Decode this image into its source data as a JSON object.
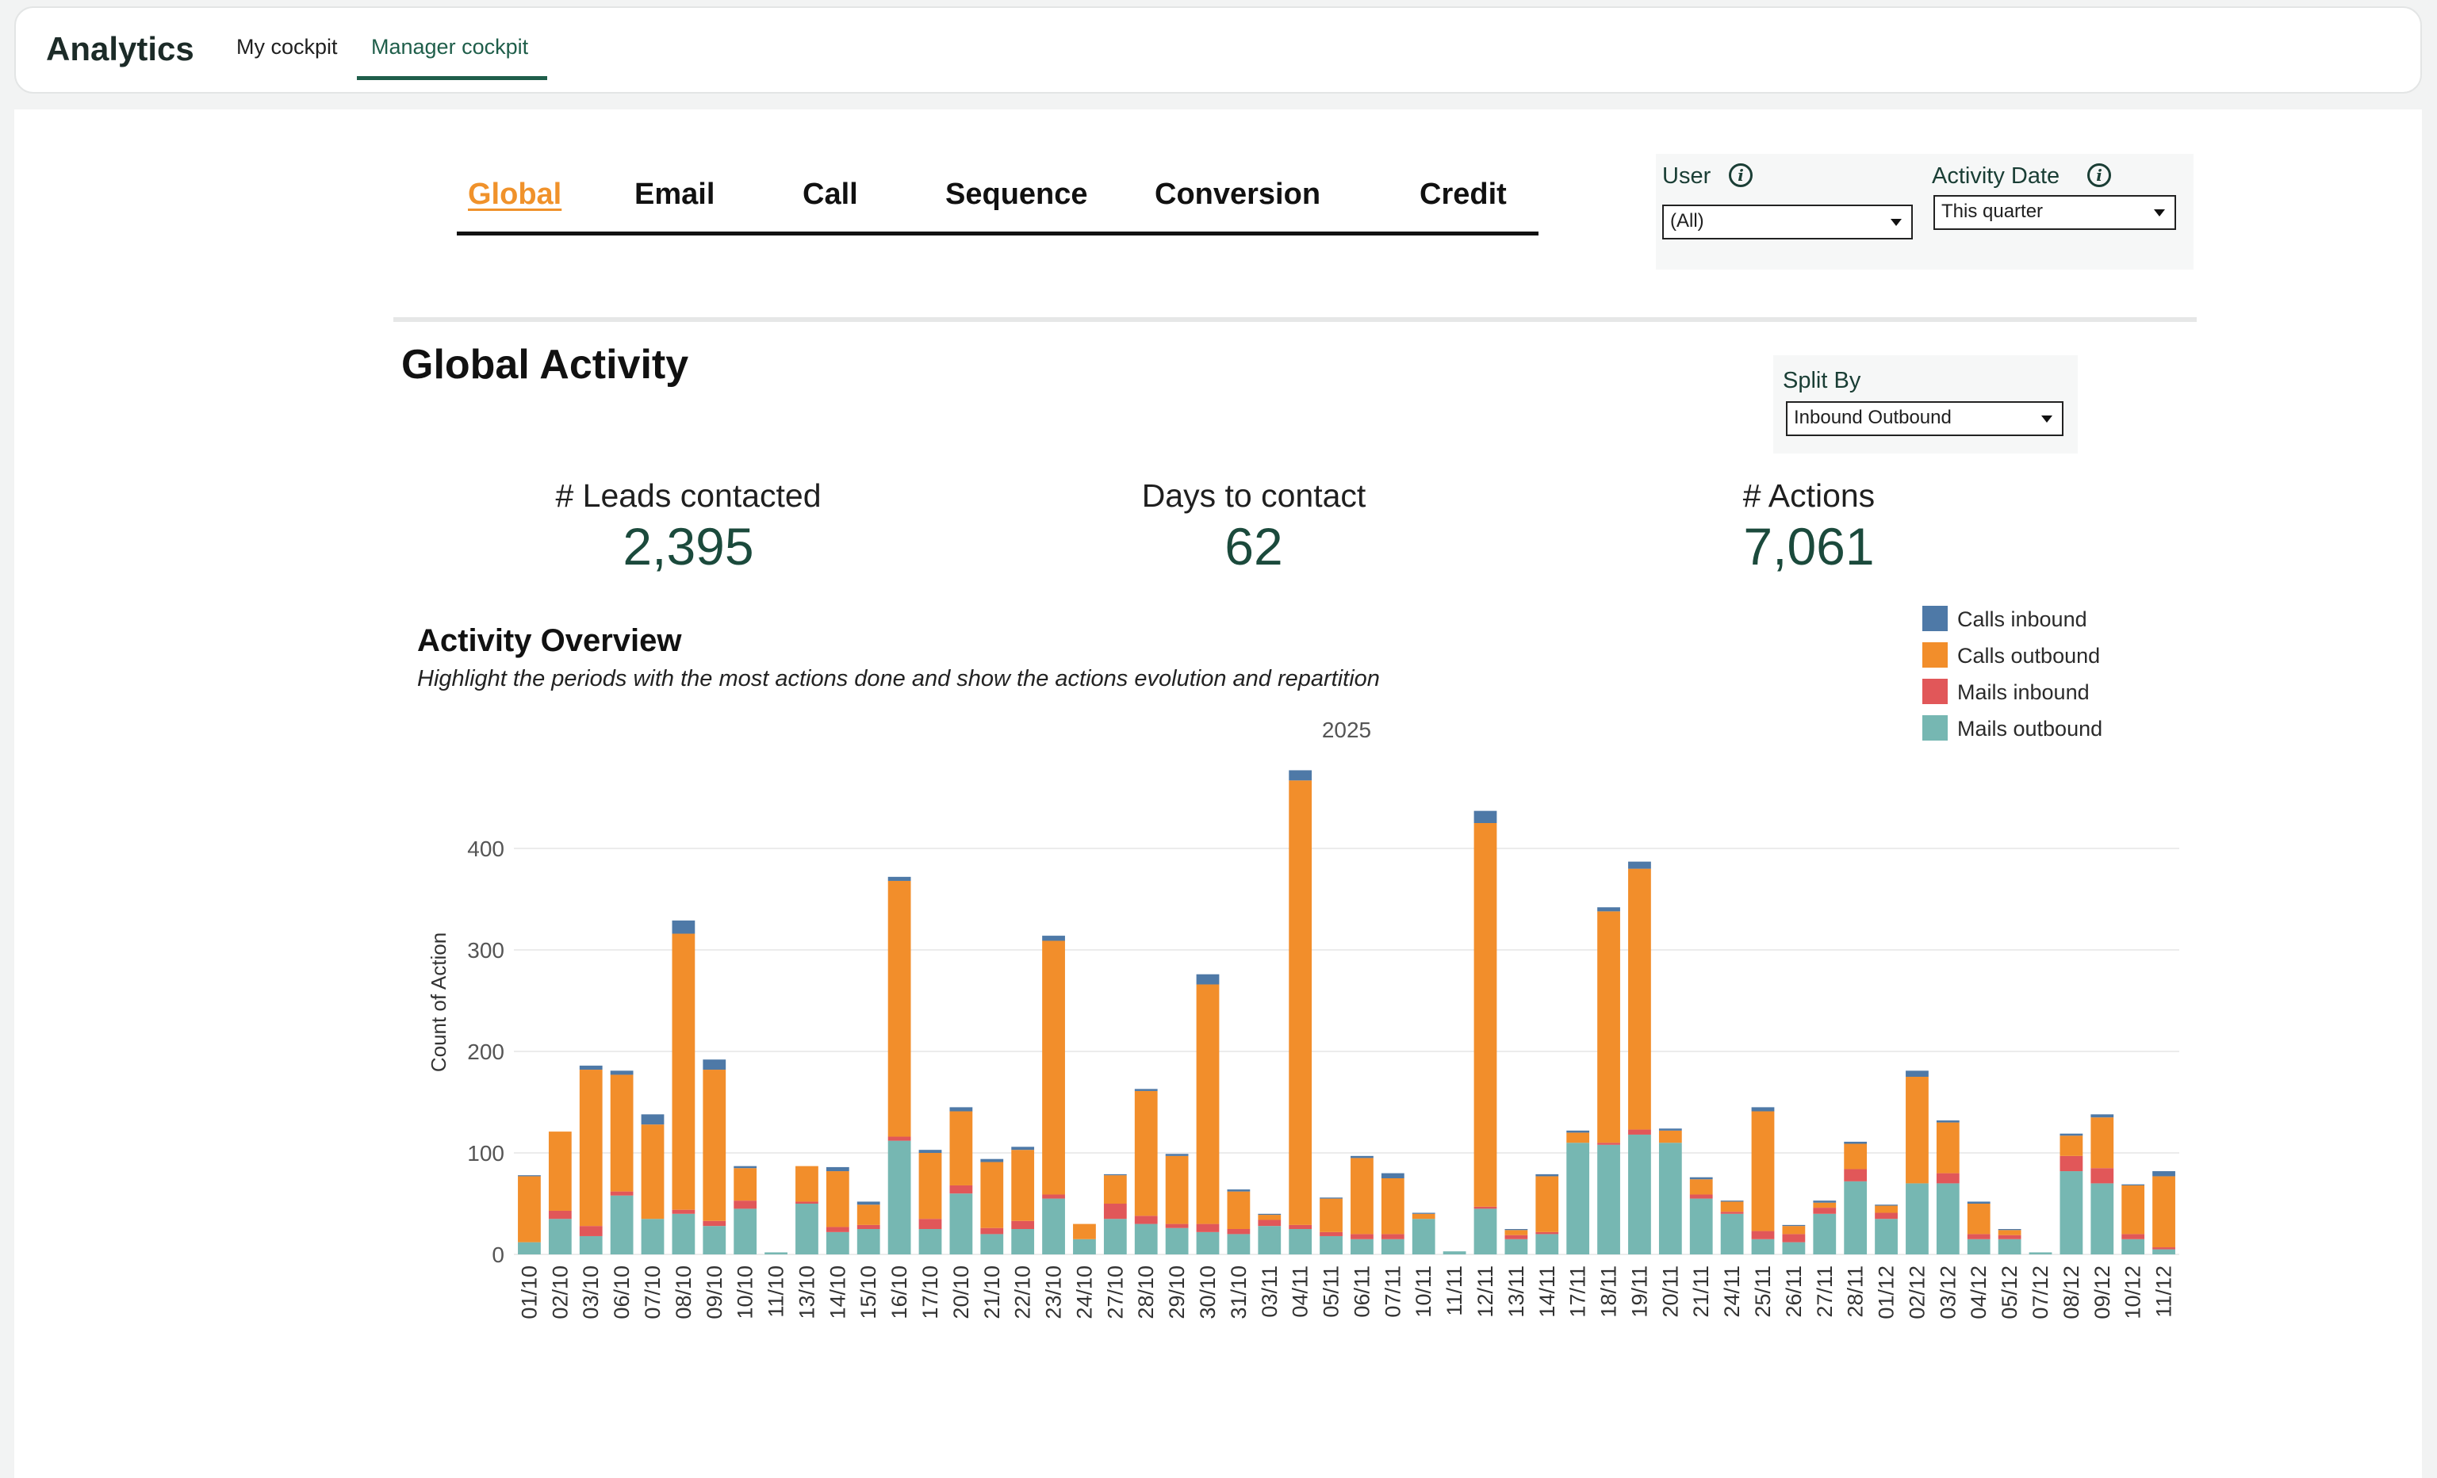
{
  "app": {
    "title": "Analytics",
    "nav": [
      {
        "label": "My cockpit"
      },
      {
        "label": "Manager cockpit",
        "active": true
      }
    ]
  },
  "tabs": [
    "Global",
    "Email",
    "Call",
    "Sequence",
    "Conversion",
    "Credit"
  ],
  "active_tab": "Global",
  "filters": {
    "user": {
      "label": "User",
      "value": "(All)"
    },
    "activity_date": {
      "label": "Activity Date",
      "value": "This quarter"
    },
    "split_by": {
      "label": "Split By",
      "value": "Inbound Outbound"
    }
  },
  "page_title": "Global Activity",
  "kpis": [
    {
      "label": "# Leads contacted",
      "value": "2,395"
    },
    {
      "label": "Days to contact",
      "value": "62"
    },
    {
      "label": "# Actions",
      "value": "7,061"
    }
  ],
  "colors": {
    "accent": "#f0922b",
    "brand_green": "#1b4a3c",
    "calls_inbound": "#4e79a7",
    "calls_outbound": "#f28e2b",
    "mails_inbound": "#e15759",
    "mails_outbound": "#76b7b2"
  },
  "chart_data": {
    "type": "bar",
    "stacked": true,
    "title": "Activity Overview",
    "subtitle": "Highlight the periods with the most actions done and show the actions evolution and repartition",
    "column_header": "2025",
    "ylabel": "Count of Action",
    "ylim": [
      0,
      440
    ],
    "yticks": [
      0,
      100,
      200,
      300,
      400
    ],
    "grid": true,
    "legend_position": "top-right",
    "categories": [
      "01/10",
      "02/10",
      "03/10",
      "06/10",
      "07/10",
      "08/10",
      "09/10",
      "10/10",
      "11/10",
      "13/10",
      "14/10",
      "15/10",
      "16/10",
      "17/10",
      "20/10",
      "21/10",
      "22/10",
      "23/10",
      "24/10",
      "27/10",
      "28/10",
      "29/10",
      "30/10",
      "31/10",
      "03/11",
      "04/11",
      "05/11",
      "06/11",
      "07/11",
      "10/11",
      "11/11",
      "12/11",
      "13/11",
      "14/11",
      "17/11",
      "18/11",
      "19/11",
      "20/11",
      "21/11",
      "24/11",
      "25/11",
      "26/11",
      "27/11",
      "28/11",
      "01/12",
      "02/12",
      "03/12",
      "04/12",
      "05/12",
      "07/12",
      "08/12",
      "09/12",
      "10/12",
      "11/12"
    ],
    "series": [
      {
        "name": "Mails outbound",
        "values": [
          12,
          35,
          18,
          58,
          35,
          40,
          28,
          45,
          2,
          50,
          22,
          25,
          112,
          25,
          60,
          20,
          25,
          55,
          15,
          35,
          30,
          26,
          22,
          20,
          28,
          25,
          18,
          15,
          15,
          35,
          3,
          45,
          15,
          20,
          110,
          108,
          118,
          110,
          55,
          40,
          15,
          12,
          40,
          72,
          35,
          70,
          70,
          15,
          15,
          2,
          82,
          70,
          15,
          5
        ]
      },
      {
        "name": "Mails inbound",
        "values": [
          0,
          8,
          10,
          4,
          0,
          4,
          5,
          8,
          0,
          2,
          5,
          4,
          4,
          10,
          8,
          6,
          8,
          4,
          0,
          15,
          8,
          4,
          8,
          5,
          6,
          4,
          4,
          5,
          5,
          0,
          0,
          2,
          4,
          2,
          0,
          2,
          5,
          0,
          4,
          2,
          8,
          8,
          6,
          12,
          6,
          0,
          10,
          5,
          4,
          0,
          15,
          15,
          5,
          2
        ]
      },
      {
        "name": "Calls outbound",
        "values": [
          65,
          78,
          154,
          115,
          93,
          272,
          149,
          32,
          0,
          35,
          55,
          20,
          252,
          65,
          73,
          65,
          70,
          250,
          15,
          28,
          123,
          67,
          236,
          37,
          5,
          438,
          33,
          75,
          55,
          5,
          0,
          378,
          5,
          55,
          10,
          228,
          257,
          12,
          15,
          10,
          118,
          8,
          5,
          25,
          7,
          105,
          50,
          30,
          5,
          0,
          20,
          50,
          48,
          70
        ]
      },
      {
        "name": "Calls inbound",
        "values": [
          1,
          0,
          4,
          4,
          10,
          13,
          10,
          2,
          0,
          0,
          4,
          3,
          4,
          3,
          4,
          3,
          3,
          5,
          0,
          1,
          2,
          2,
          10,
          2,
          1,
          10,
          1,
          2,
          5,
          1,
          0,
          12,
          1,
          2,
          2,
          4,
          7,
          2,
          2,
          1,
          4,
          1,
          2,
          2,
          1,
          6,
          2,
          2,
          1,
          0,
          2,
          3,
          1,
          5
        ]
      }
    ]
  }
}
